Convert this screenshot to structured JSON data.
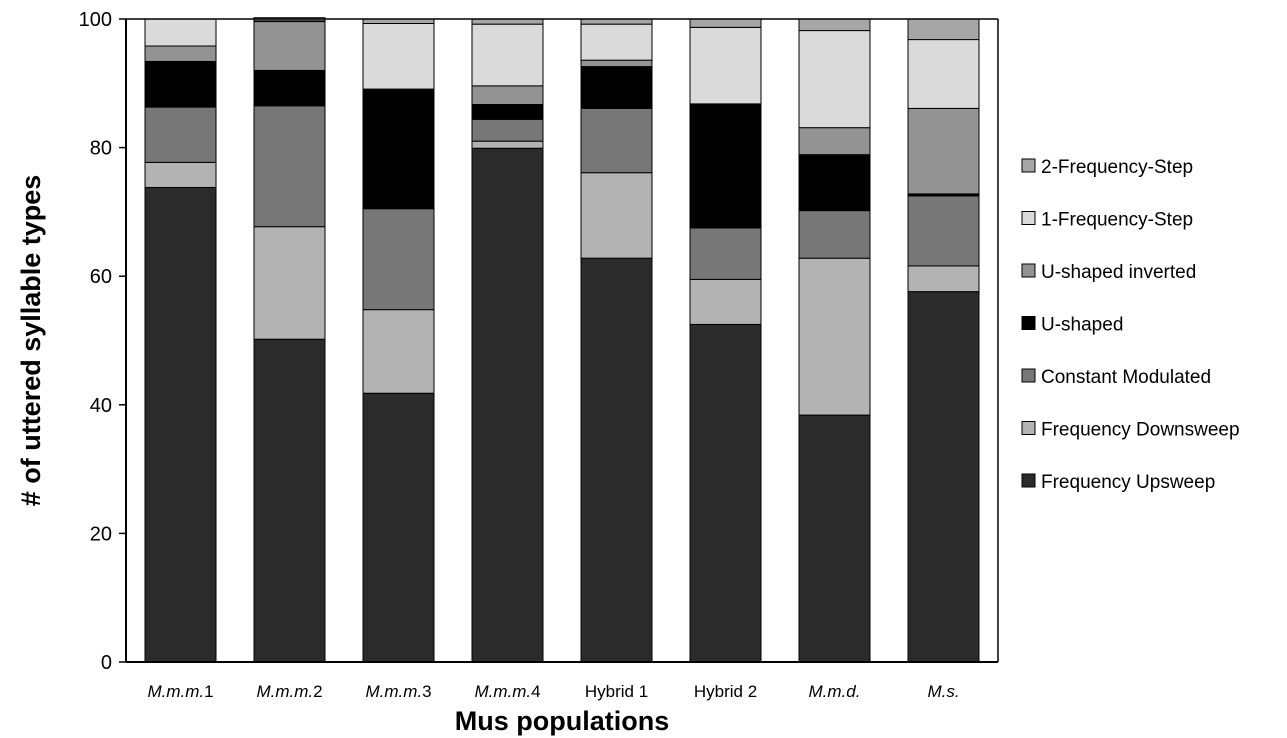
{
  "chart_data": {
    "type": "bar",
    "stacked": true,
    "title": "",
    "xlabel": "Mus populations",
    "ylabel": "# of uttered syllable types",
    "ylim": [
      0,
      100
    ],
    "yticks": [
      "0",
      "20",
      "40",
      "60",
      "80",
      "100"
    ],
    "grid": false,
    "legend_position": "right",
    "categories": [
      {
        "prefix": "M.m.m.",
        "suffix": "1",
        "italic_prefix": true
      },
      {
        "prefix": "M.m.m.",
        "suffix": "2",
        "italic_prefix": true
      },
      {
        "prefix": "M.m.m.",
        "suffix": "3",
        "italic_prefix": true
      },
      {
        "prefix": "M.m.m.",
        "suffix": "4",
        "italic_prefix": true
      },
      {
        "prefix": "",
        "suffix": "Hybrid 1",
        "italic_prefix": false
      },
      {
        "prefix": "",
        "suffix": "Hybrid 2",
        "italic_prefix": false
      },
      {
        "prefix": "M.m.d.",
        "suffix": "",
        "italic_prefix": true
      },
      {
        "prefix": "M.s.",
        "suffix": "",
        "italic_prefix": true
      }
    ],
    "series": [
      {
        "name": "Frequency Upsweep",
        "color": "#2b2b2b",
        "values": [
          73.8,
          50.2,
          41.8,
          79.9,
          62.8,
          52.5,
          38.4,
          57.6
        ]
      },
      {
        "name": "Frequency Downsweep",
        "color": "#b3b3b3",
        "values": [
          3.9,
          17.5,
          13.0,
          1.1,
          13.3,
          7.0,
          24.4,
          4.0
        ]
      },
      {
        "name": "Constant Modulated",
        "color": "#777777",
        "values": [
          8.6,
          18.8,
          15.7,
          3.4,
          10.0,
          8.0,
          7.4,
          10.9
        ]
      },
      {
        "name": "U-shaped",
        "color": "#000000",
        "values": [
          7.1,
          5.5,
          18.6,
          2.3,
          6.5,
          19.3,
          8.7,
          0.3
        ]
      },
      {
        "name": "U-shaped inverted",
        "color": "#939393",
        "values": [
          2.4,
          7.6,
          0.0,
          2.9,
          1.0,
          0.0,
          4.2,
          13.3
        ]
      },
      {
        "name": "1-Frequency-Step",
        "color": "#dadada",
        "values": [
          4.2,
          0.1,
          10.2,
          9.6,
          5.6,
          11.9,
          15.1,
          10.7
        ]
      },
      {
        "name": "2-Frequency-Step",
        "color": "#a6a6a6",
        "values": [
          0.0,
          0.5,
          0.7,
          0.8,
          0.8,
          1.3,
          1.8,
          3.2
        ]
      }
    ]
  }
}
